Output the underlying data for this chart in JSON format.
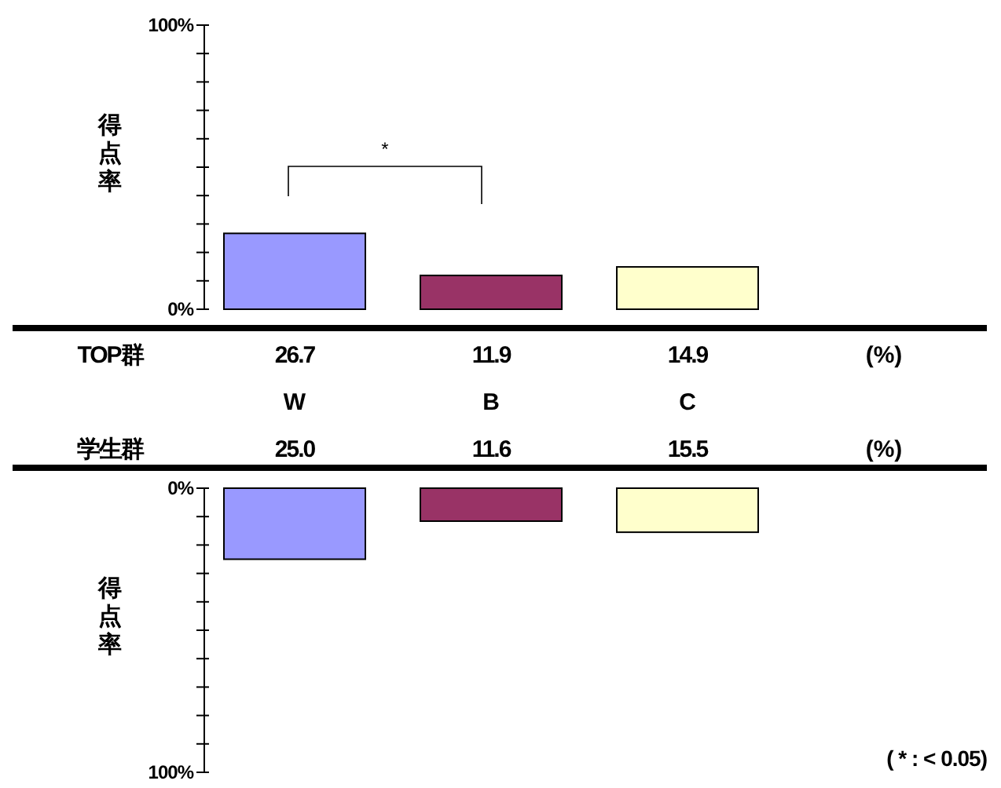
{
  "chart_data": [
    {
      "type": "bar",
      "categories": [
        "W",
        "B",
        "C",
        null
      ],
      "ylabel": "得点率",
      "ylim": [
        0,
        100
      ],
      "yticks": [
        {
          "value": 0,
          "label": "0%"
        },
        {
          "value": 10,
          "label": null
        },
        {
          "value": 20,
          "label": null
        },
        {
          "value": 30,
          "label": null
        },
        {
          "value": 40,
          "label": null
        },
        {
          "value": 50,
          "label": null
        },
        {
          "value": 60,
          "label": null
        },
        {
          "value": 70,
          "label": null
        },
        {
          "value": 80,
          "label": null
        },
        {
          "value": 90,
          "label": null
        },
        {
          "value": 100,
          "label": "100%"
        }
      ],
      "series": [
        {
          "name": "TOP群",
          "values": [
            26.7,
            11.9,
            14.9,
            null
          ]
        }
      ],
      "colors": [
        "#9999ff",
        "#993366",
        "#ffffcc",
        null
      ],
      "value_labels": [
        "26.7",
        "11.9",
        "14.9",
        null
      ],
      "annotations": [
        "*",
        "(%)"
      ]
    },
    {
      "type": "bar",
      "categories": [
        null,
        null,
        null,
        null
      ],
      "tick_labels": "y",
      "ylabel": "得点率",
      "ylim": [
        100,
        0
      ],
      "yticks": [
        {
          "value": 0,
          "label": "0%"
        },
        {
          "value": 10,
          "label": null
        },
        {
          "value": 20,
          "label": null
        },
        {
          "value": 30,
          "label": null
        },
        {
          "value": 40,
          "label": null
        },
        {
          "value": 50,
          "label": null
        },
        {
          "value": 60,
          "label": null
        },
        {
          "value": 70,
          "label": null
        },
        {
          "value": 80,
          "label": null
        },
        {
          "value": 90,
          "label": null
        },
        {
          "value": 100,
          "label": "100%"
        }
      ],
      "series": [
        {
          "name": "学生群",
          "values": [
            25.0,
            11.6,
            15.5,
            null
          ]
        }
      ],
      "colors": [
        "#9999ff",
        "#993366",
        "#ffffcc",
        null
      ],
      "value_labels": [
        "25.0",
        "11.6",
        "15.5",
        null
      ],
      "annotations": [
        "(%)",
        "( * : < 0.05)"
      ]
    }
  ]
}
